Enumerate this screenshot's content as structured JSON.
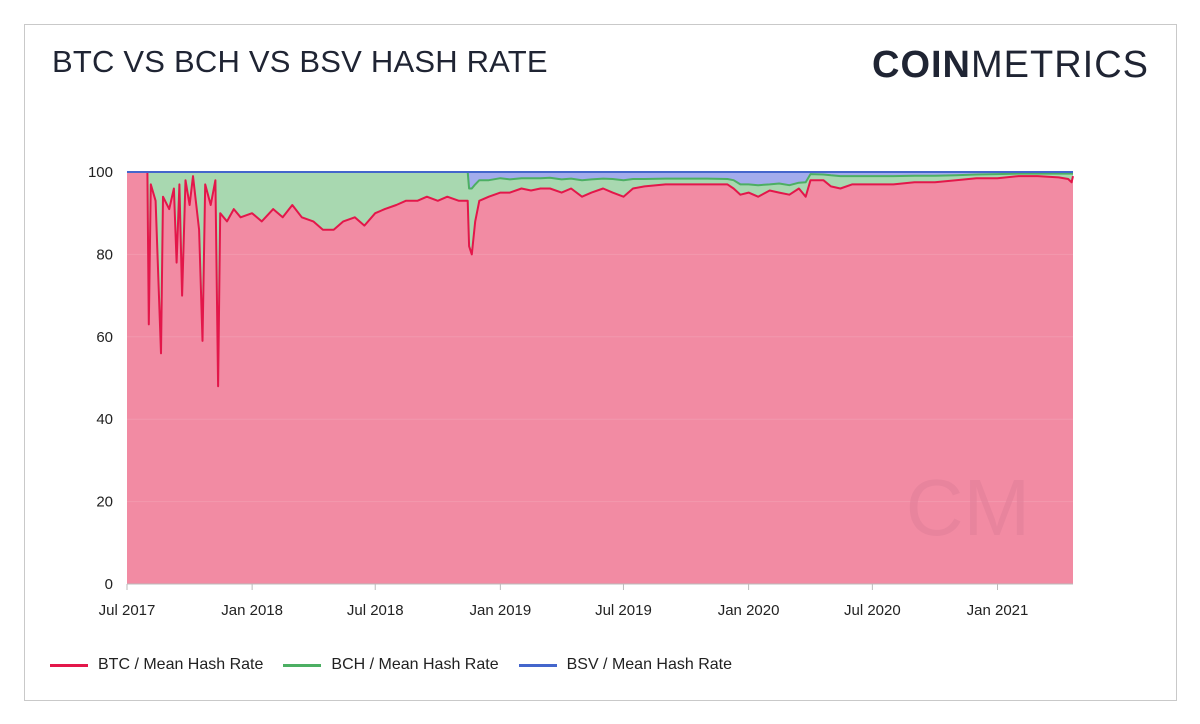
{
  "header": {
    "title": "BTC VS BCH VS BSV HASH RATE",
    "logo_bold": "COIN",
    "logo_light": "METRICS",
    "watermark": "CM"
  },
  "chart_data": {
    "type": "area",
    "stacked": true,
    "title": "BTC VS BCH VS BSV HASH RATE",
    "xlabel": "",
    "ylabel": "",
    "ylim": [
      0,
      100
    ],
    "xlim": [
      "2017-07-01",
      "2021-04-22"
    ],
    "yticks": [
      0,
      20,
      40,
      60,
      80,
      100
    ],
    "xticks": [
      {
        "date": "2017-07-01",
        "label": "Jul 2017"
      },
      {
        "date": "2018-01-01",
        "label": "Jan 2018"
      },
      {
        "date": "2018-07-01",
        "label": "Jul 2018"
      },
      {
        "date": "2019-01-01",
        "label": "Jan 2019"
      },
      {
        "date": "2019-07-01",
        "label": "Jul 2019"
      },
      {
        "date": "2020-01-01",
        "label": "Jan 2020"
      },
      {
        "date": "2020-07-01",
        "label": "Jul 2020"
      },
      {
        "date": "2021-01-01",
        "label": "Jan 2021"
      }
    ],
    "grid": true,
    "legend": "bottom",
    "x": [
      "2017-07-01",
      "2017-07-31",
      "2017-08-02",
      "2017-08-05",
      "2017-08-12",
      "2017-08-20",
      "2017-08-23",
      "2017-09-01",
      "2017-09-08",
      "2017-09-12",
      "2017-09-16",
      "2017-09-20",
      "2017-09-25",
      "2017-10-01",
      "2017-10-06",
      "2017-10-15",
      "2017-10-20",
      "2017-10-24",
      "2017-11-01",
      "2017-11-08",
      "2017-11-12",
      "2017-11-15",
      "2017-11-25",
      "2017-12-05",
      "2017-12-15",
      "2018-01-01",
      "2018-01-15",
      "2018-02-01",
      "2018-02-15",
      "2018-03-01",
      "2018-03-15",
      "2018-04-01",
      "2018-04-15",
      "2018-05-01",
      "2018-05-15",
      "2018-06-01",
      "2018-06-15",
      "2018-07-01",
      "2018-07-15",
      "2018-08-01",
      "2018-08-15",
      "2018-09-01",
      "2018-09-15",
      "2018-10-01",
      "2018-10-15",
      "2018-11-01",
      "2018-11-14",
      "2018-11-16",
      "2018-11-20",
      "2018-11-25",
      "2018-12-01",
      "2018-12-15",
      "2019-01-01",
      "2019-01-15",
      "2019-02-01",
      "2019-02-15",
      "2019-03-01",
      "2019-03-15",
      "2019-04-01",
      "2019-04-15",
      "2019-05-01",
      "2019-05-15",
      "2019-06-01",
      "2019-06-15",
      "2019-07-01",
      "2019-07-15",
      "2019-08-01",
      "2019-09-01",
      "2019-10-01",
      "2019-11-01",
      "2019-12-01",
      "2019-12-10",
      "2019-12-20",
      "2020-01-01",
      "2020-01-15",
      "2020-02-01",
      "2020-02-15",
      "2020-03-01",
      "2020-03-15",
      "2020-03-25",
      "2020-04-01",
      "2020-04-20",
      "2020-05-01",
      "2020-05-15",
      "2020-06-01",
      "2020-07-01",
      "2020-08-01",
      "2020-09-01",
      "2020-10-01",
      "2020-11-01",
      "2020-12-01",
      "2021-01-01",
      "2021-02-01",
      "2021-03-01",
      "2021-04-01",
      "2021-04-15",
      "2021-04-20",
      "2021-04-22"
    ],
    "series": [
      {
        "name": "BTC / Mean Hash Rate",
        "color": "#e3174a",
        "fill": "#f28ba3",
        "values": [
          100,
          100,
          63,
          97,
          93,
          56,
          94,
          91,
          96,
          78,
          97,
          70,
          98,
          92,
          99,
          86,
          59,
          97,
          92,
          98,
          48,
          90,
          88,
          91,
          89,
          90,
          88,
          91,
          89,
          92,
          89,
          88,
          86,
          86,
          88,
          89,
          87,
          90,
          91,
          92,
          93,
          93,
          94,
          93,
          94,
          93,
          93,
          82,
          80,
          88,
          93,
          94,
          95,
          95,
          96,
          95.5,
          96,
          96,
          95,
          96,
          94,
          95,
          96,
          95,
          94,
          96,
          96.5,
          97,
          97,
          97,
          97,
          96,
          94.5,
          95,
          94,
          95.5,
          95,
          94.5,
          96,
          94,
          98,
          98,
          96.5,
          96,
          97,
          97,
          97,
          97.5,
          97.5,
          98,
          98.5,
          98.5,
          99,
          99,
          98.7,
          98.3,
          97.5,
          99
        ]
      },
      {
        "name": "BCH / Mean Hash Rate",
        "color": "#4caf63",
        "fill": "#a8d8b0",
        "values": [
          0,
          0,
          37,
          3,
          7,
          44,
          6,
          9,
          4,
          22,
          3,
          30,
          2,
          8,
          1,
          14,
          41,
          3,
          8,
          2,
          52,
          10,
          12,
          9,
          11,
          10,
          12,
          9,
          11,
          8,
          11,
          12,
          14,
          14,
          12,
          11,
          13,
          10,
          9,
          8,
          7,
          7,
          6,
          7,
          6,
          7,
          7,
          14,
          16,
          9,
          5,
          4,
          3.5,
          3.2,
          2.5,
          3,
          2.5,
          2.6,
          3.2,
          2.4,
          4,
          3.2,
          2.4,
          3.3,
          4,
          2.3,
          1.8,
          1.4,
          1.4,
          1.4,
          1.3,
          2,
          2.5,
          2,
          2.8,
          1.5,
          2.2,
          2.3,
          1.4,
          3.5,
          1.5,
          1.4,
          2.7,
          3,
          2,
          2,
          2,
          1.6,
          1.6,
          1.2,
          0.9,
          1,
          0.6,
          0.6,
          0.9,
          1.3,
          2.1,
          0.6
        ]
      },
      {
        "name": "BSV / Mean Hash Rate",
        "color": "#4466cc",
        "fill": "#a3acec",
        "values": [
          0,
          0,
          0,
          0,
          0,
          0,
          0,
          0,
          0,
          0,
          0,
          0,
          0,
          0,
          0,
          0,
          0,
          0,
          0,
          0,
          0,
          0,
          0,
          0,
          0,
          0,
          0,
          0,
          0,
          0,
          0,
          0,
          0,
          0,
          0,
          0,
          0,
          0,
          0,
          0,
          0,
          0,
          0,
          0,
          0,
          0,
          0,
          4,
          4,
          3,
          2,
          2,
          1.5,
          1.8,
          1.5,
          1.5,
          1.5,
          1.4,
          1.8,
          1.6,
          2,
          1.8,
          1.6,
          1.7,
          2,
          1.7,
          1.7,
          1.6,
          1.6,
          1.6,
          1.7,
          2,
          3,
          3,
          3.2,
          3,
          2.8,
          3.2,
          2.6,
          2.5,
          0.5,
          0.6,
          0.8,
          1,
          1,
          1,
          1,
          0.9,
          0.9,
          0.8,
          0.6,
          0.5,
          0.4,
          0.4,
          0.4,
          0.4,
          0.4,
          0.4
        ]
      }
    ]
  }
}
